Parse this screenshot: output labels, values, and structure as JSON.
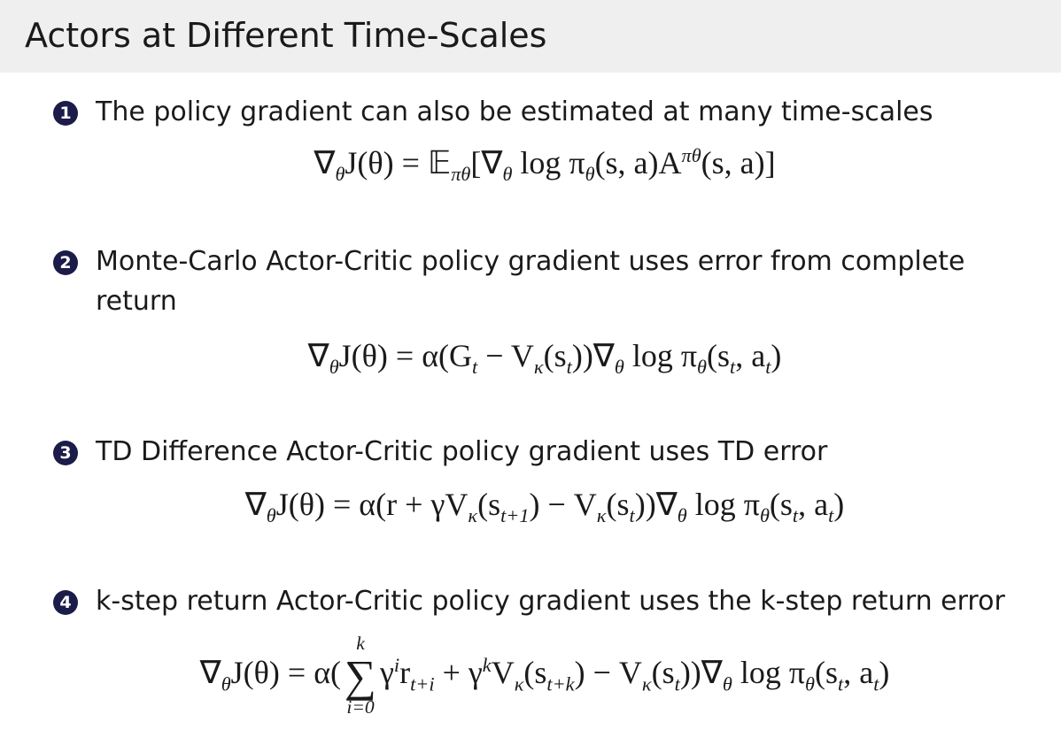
{
  "header": {
    "title": "Actors at Different Time-Scales"
  },
  "items": [
    {
      "marker": "1",
      "text": "The policy gradient can also be estimated at many time-scales",
      "formula": [
        {
          "text": "∇"
        },
        {
          "sub": "θ"
        },
        {
          "text": "J(θ) = 𝔼"
        },
        {
          "sub": "πθ"
        },
        {
          "text": "[∇"
        },
        {
          "sub": "θ"
        },
        {
          "text": " log π"
        },
        {
          "sub": "θ"
        },
        {
          "text": "(s, a)A"
        },
        {
          "sup": "πθ"
        },
        {
          "text": "(s, a)]"
        }
      ]
    },
    {
      "marker": "2",
      "text": "Monte-Carlo Actor-Critic policy gradient uses error from complete return",
      "formula": [
        {
          "text": "∇"
        },
        {
          "sub": "θ"
        },
        {
          "text": "J(θ) = α(G"
        },
        {
          "sub": "t"
        },
        {
          "text": " − V"
        },
        {
          "sub": "κ"
        },
        {
          "text": "(s"
        },
        {
          "sub": "t"
        },
        {
          "text": "))∇"
        },
        {
          "sub": "θ"
        },
        {
          "text": " log π"
        },
        {
          "sub": "θ"
        },
        {
          "text": "(s"
        },
        {
          "sub": "t"
        },
        {
          "text": ", a"
        },
        {
          "sub": "t"
        },
        {
          "text": ")"
        }
      ]
    },
    {
      "marker": "3",
      "text": "TD Difference Actor-Critic policy gradient uses TD error",
      "formula": [
        {
          "text": "∇"
        },
        {
          "sub": "θ"
        },
        {
          "text": "J(θ) = α(r + γV"
        },
        {
          "sub": "κ"
        },
        {
          "text": "(s"
        },
        {
          "sub": "t+1"
        },
        {
          "text": ") − V"
        },
        {
          "sub": "κ"
        },
        {
          "text": "(s"
        },
        {
          "sub": "t"
        },
        {
          "text": "))∇"
        },
        {
          "sub": "θ"
        },
        {
          "text": " log π"
        },
        {
          "sub": "θ"
        },
        {
          "text": "(s"
        },
        {
          "sub": "t"
        },
        {
          "text": ", a"
        },
        {
          "sub": "t"
        },
        {
          "text": ")"
        }
      ]
    },
    {
      "marker": "4",
      "text": "k-step return Actor-Critic policy gradient uses the k-step return error",
      "formula": [
        {
          "text": "∇"
        },
        {
          "sub": "θ"
        },
        {
          "text": "J(θ) = α("
        },
        {
          "sum": "∑",
          "over": "k",
          "under": "i=0"
        },
        {
          "text": "γ"
        },
        {
          "sup": "i"
        },
        {
          "text": "r"
        },
        {
          "sub": "t+i"
        },
        {
          "text": " + γ"
        },
        {
          "sup": "k"
        },
        {
          "text": "V"
        },
        {
          "sub": "κ"
        },
        {
          "text": "(s"
        },
        {
          "sub": "t+k"
        },
        {
          "text": ") − V"
        },
        {
          "sub": "κ"
        },
        {
          "text": "(s"
        },
        {
          "sub": "t"
        },
        {
          "text": "))∇"
        },
        {
          "sub": "θ"
        },
        {
          "text": " log π"
        },
        {
          "sub": "θ"
        },
        {
          "text": "(s"
        },
        {
          "sub": "t"
        },
        {
          "text": ", a"
        },
        {
          "sub": "t"
        },
        {
          "text": ")"
        }
      ]
    }
  ]
}
